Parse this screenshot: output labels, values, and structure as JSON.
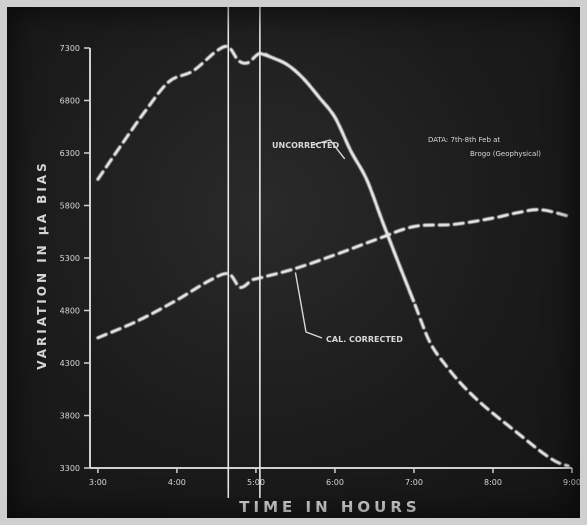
{
  "chart_data": {
    "type": "line",
    "xlabel": "TIME IN HOURS",
    "ylabel": "VARIATION IN μA BIAS",
    "x_ticks": [
      "3:00",
      "4:00",
      "5:00",
      "6:00",
      "7:00",
      "8:00",
      "9:00"
    ],
    "y_ticks": [
      "7300",
      "6800",
      "6300",
      "5800",
      "5300",
      "4800",
      "4300",
      "3800",
      "3300"
    ],
    "xlim": [
      2.9,
      9.0
    ],
    "ylim": [
      3300,
      7300
    ],
    "vertical_markers": [
      4.65,
      5.05
    ],
    "annotations": [
      {
        "text": "UNCORRECTED",
        "target_series": 0,
        "target_x": 6.05
      },
      {
        "text": "CAL. CORRECTED",
        "target_series": 1,
        "target_x": 5.45
      },
      {
        "text": "DATA: 7th-8th Feb at Brogo (Geophysical)",
        "target_series": null,
        "target_x": null
      }
    ],
    "series": [
      {
        "name": "UNCORRECTED",
        "style": "dashed-solid",
        "x": [
          3.0,
          3.3,
          3.6,
          3.9,
          4.2,
          4.5,
          4.65,
          4.78,
          4.9,
          5.05,
          5.2,
          5.4,
          5.6,
          5.8,
          6.0,
          6.2,
          6.4,
          6.6,
          6.8,
          7.0,
          7.2,
          7.4,
          7.6,
          7.8,
          8.0,
          8.2,
          8.4,
          8.6,
          8.8,
          8.95
        ],
        "y": [
          6050,
          6380,
          6700,
          6980,
          7080,
          7270,
          7310,
          7180,
          7160,
          7250,
          7210,
          7140,
          7010,
          6830,
          6640,
          6320,
          6050,
          5650,
          5260,
          4880,
          4500,
          4280,
          4100,
          3950,
          3820,
          3700,
          3580,
          3460,
          3360,
          3320
        ]
      },
      {
        "name": "CAL. CORRECTED",
        "style": "dashed",
        "x": [
          3.0,
          3.5,
          4.0,
          4.4,
          4.65,
          4.8,
          4.95,
          5.05,
          5.5,
          6.0,
          6.5,
          7.0,
          7.5,
          8.0,
          8.3,
          8.6,
          8.95
        ],
        "y": [
          4540,
          4700,
          4900,
          5080,
          5150,
          5020,
          5090,
          5110,
          5200,
          5330,
          5470,
          5600,
          5620,
          5680,
          5730,
          5760,
          5700
        ]
      }
    ]
  }
}
